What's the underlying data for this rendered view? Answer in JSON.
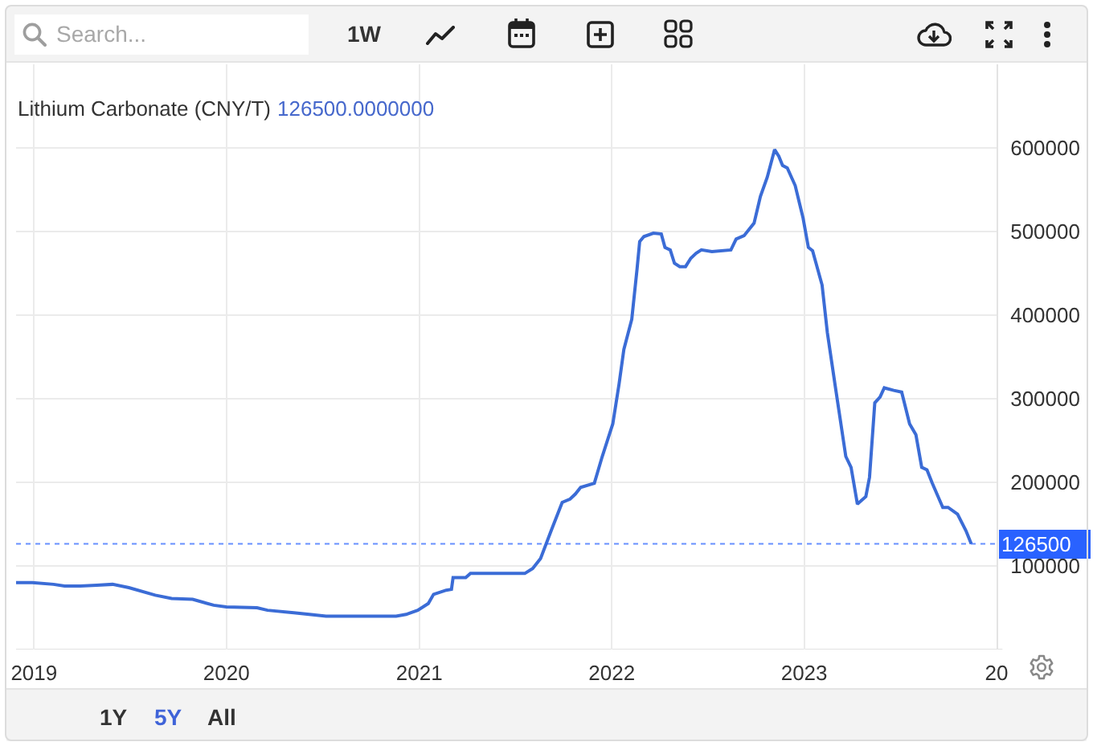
{
  "chart_data": {
    "type": "line",
    "title": "Lithium Carbonate (CNY/T)",
    "subtitle": "126500.0000000",
    "annotations": [
      "Search...",
      "1W",
      "1Y",
      "5Y",
      "All"
    ],
    "x": [
      "2018-11-28",
      "2018-12-29",
      "2019-02-07",
      "2019-02-28",
      "2019-03-30",
      "2019-04-30",
      "2019-05-30",
      "2019-06-30",
      "2019-08-19",
      "2019-09-19",
      "2019-10-29",
      "2019-12-08",
      "2020-01-01",
      "2020-02-28",
      "2020-03-19",
      "2020-05-08",
      "2020-07-08",
      "2020-11-18",
      "2020-12-07",
      "2020-12-29",
      "2021-01-18",
      "2021-01-28",
      "2021-02-21",
      "2021-03-03",
      "2021-03-06",
      "2021-03-30",
      "2021-04-08",
      "2021-07-20",
      "2021-08-04",
      "2021-08-19",
      "2021-09-08",
      "2021-09-29",
      "2021-10-14",
      "2021-10-24",
      "2021-11-03",
      "2021-11-29",
      "2021-12-14",
      "2022-01-03",
      "2022-01-15",
      "2022-01-24",
      "2022-02-08",
      "2022-02-18",
      "2022-02-23",
      "2022-03-03",
      "2022-03-21",
      "2022-04-05",
      "2022-04-12",
      "2022-04-22",
      "2022-04-30",
      "2022-05-10",
      "2022-05-21",
      "2022-05-31",
      "2022-06-10",
      "2022-06-20",
      "2022-07-10",
      "2022-08-15",
      "2022-08-25",
      "2022-09-09",
      "2022-09-28",
      "2022-10-10",
      "2022-10-23",
      "2022-11-06",
      "2022-11-14",
      "2022-11-21",
      "2022-11-30",
      "2022-12-15",
      "2022-12-30",
      "2023-01-09",
      "2023-01-17",
      "2023-02-04",
      "2023-02-14",
      "2023-03-01",
      "2023-03-21",
      "2023-03-31",
      "2023-04-12",
      "2023-04-28",
      "2023-05-05",
      "2023-05-15",
      "2023-05-25",
      "2023-06-02",
      "2023-06-20",
      "2023-07-05",
      "2023-07-20",
      "2023-08-01",
      "2023-08-12",
      "2023-08-22",
      "2023-09-01",
      "2023-09-21",
      "2023-10-01",
      "2023-10-19",
      "2023-11-04",
      "2023-11-14"
    ],
    "values": [
      80000,
      80000,
      78000,
      76000,
      76000,
      77000,
      78000,
      74000,
      65000,
      61000,
      60000,
      53000,
      51000,
      50000,
      47000,
      44000,
      40000,
      40000,
      42000,
      47000,
      55000,
      66000,
      71000,
      72000,
      86000,
      86000,
      91000,
      91000,
      97000,
      109000,
      142000,
      176000,
      180000,
      186000,
      194000,
      199000,
      231000,
      270000,
      318000,
      359000,
      395000,
      455000,
      488000,
      494000,
      498000,
      497000,
      481000,
      478000,
      462000,
      458000,
      458000,
      468000,
      474000,
      478000,
      476000,
      478000,
      491000,
      495000,
      510000,
      542000,
      565000,
      598000,
      590000,
      579000,
      576000,
      555000,
      516000,
      481000,
      477000,
      436000,
      379000,
      315000,
      231000,
      218000,
      174000,
      183000,
      206000,
      295000,
      302000,
      313000,
      310000,
      308000,
      270000,
      257000,
      218000,
      215000,
      199000,
      170000,
      170000,
      162000,
      142000,
      126500
    ],
    "color": "#3b6cd6",
    "line_style": "solid",
    "xlim": [
      "2018-11-28",
      "2024-01-01"
    ],
    "xticks": [
      {
        "value": "2019-01-01",
        "label": "2019"
      },
      {
        "value": "2020-01-01",
        "label": "2020"
      },
      {
        "value": "2021-01-01",
        "label": "2021"
      },
      {
        "value": "2022-01-01",
        "label": "2022"
      },
      {
        "value": "2023-01-01",
        "label": "2023"
      },
      {
        "value": "2024-01-01",
        "label": "20"
      }
    ],
    "ylim": [
      0,
      700000
    ],
    "yticks": [
      {
        "value": 0,
        "label": null
      },
      100000,
      200000,
      300000,
      400000,
      500000,
      600000
    ],
    "ref_lines": [
      {
        "axis": "y",
        "value": 126500,
        "label": "126500",
        "color": "#2962ff",
        "line_style": "dotted"
      }
    ],
    "grid": true
  }
}
